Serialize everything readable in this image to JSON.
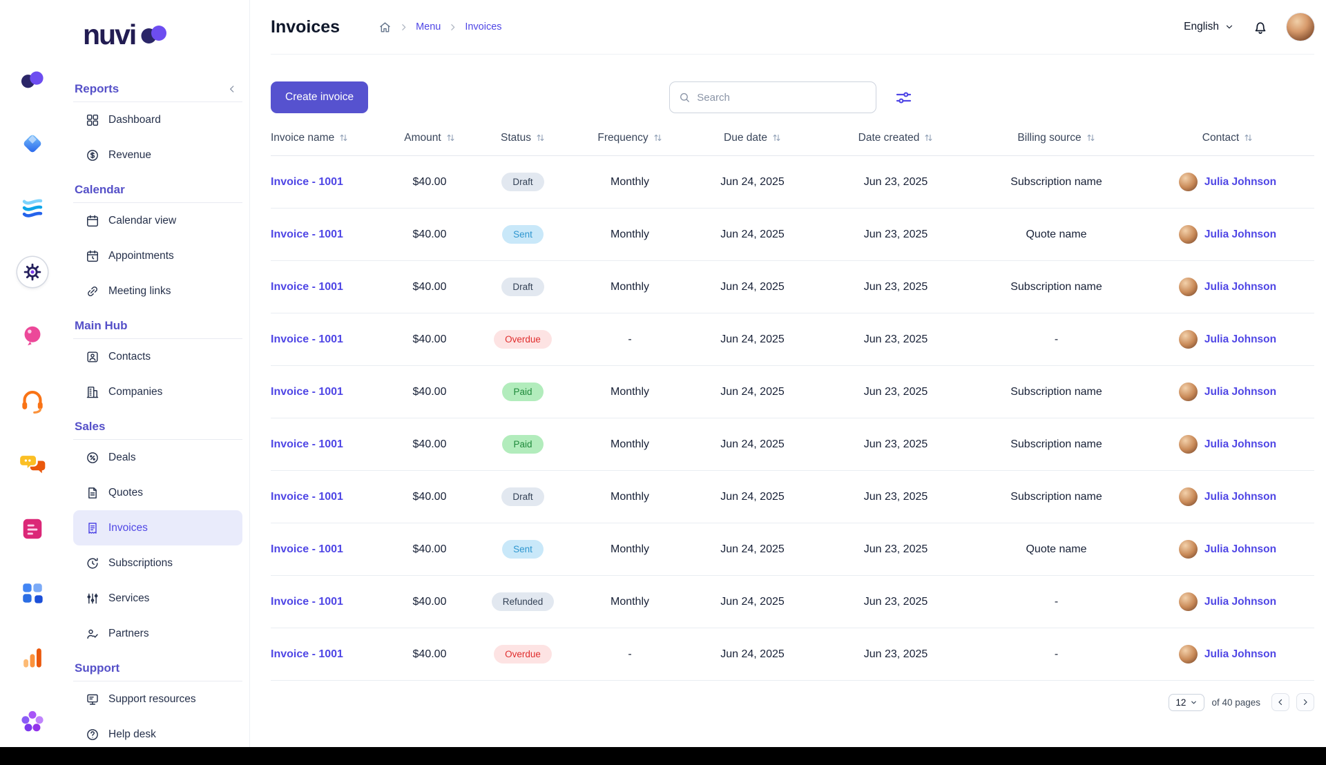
{
  "brand": {
    "logo_text": "nuvi"
  },
  "rail": {
    "items": [
      {
        "icon": "brand-mark"
      },
      {
        "icon": "gem"
      },
      {
        "icon": "waves"
      },
      {
        "icon": "settings",
        "active": true
      },
      {
        "icon": "balloon"
      },
      {
        "icon": "headset"
      },
      {
        "icon": "team-chat"
      },
      {
        "icon": "notes"
      },
      {
        "icon": "apps"
      },
      {
        "icon": "bar-chart"
      },
      {
        "icon": "community"
      }
    ]
  },
  "sidebar": {
    "sections": [
      {
        "label": "Reports",
        "collapsible": true,
        "items": [
          {
            "label": "Dashboard",
            "icon": "dashboard"
          },
          {
            "label": "Revenue",
            "icon": "revenue"
          }
        ]
      },
      {
        "label": "Calendar",
        "items": [
          {
            "label": "Calendar view",
            "icon": "calendar"
          },
          {
            "label": "Appointments",
            "icon": "appointments"
          },
          {
            "label": "Meeting links",
            "icon": "link"
          }
        ]
      },
      {
        "label": "Main Hub",
        "items": [
          {
            "label": "Contacts",
            "icon": "contacts"
          },
          {
            "label": "Companies",
            "icon": "companies"
          }
        ]
      },
      {
        "label": "Sales",
        "items": [
          {
            "label": "Deals",
            "icon": "deals"
          },
          {
            "label": "Quotes",
            "icon": "quotes"
          },
          {
            "label": "Invoices",
            "icon": "invoices",
            "active": true
          },
          {
            "label": "Subscriptions",
            "icon": "subscriptions"
          },
          {
            "label": "Services",
            "icon": "services"
          },
          {
            "label": "Partners",
            "icon": "partners"
          }
        ]
      },
      {
        "label": "Support",
        "items": [
          {
            "label": "Support resources",
            "icon": "support"
          },
          {
            "label": "Help desk",
            "icon": "help"
          }
        ]
      }
    ]
  },
  "header": {
    "title": "Invoices",
    "breadcrumb": {
      "menu": "Menu",
      "current": "Invoices"
    },
    "language": "English"
  },
  "toolbar": {
    "create_label": "Create invoice",
    "search_placeholder": "Search"
  },
  "table": {
    "columns": [
      "Invoice name",
      "Amount",
      "Status",
      "Frequency",
      "Due date",
      "Date created",
      "Billing source",
      "Contact"
    ],
    "rows": [
      {
        "name": "Invoice - 1001",
        "amount": "$40.00",
        "status": "Draft",
        "frequency": "Monthly",
        "due_date": "Jun 24, 2025",
        "date_created": "Jun 23, 2025",
        "billing_source": "Subscription name",
        "contact": "Julia Johnson"
      },
      {
        "name": "Invoice - 1001",
        "amount": "$40.00",
        "status": "Sent",
        "frequency": "Monthly",
        "due_date": "Jun 24, 2025",
        "date_created": "Jun 23, 2025",
        "billing_source": "Quote name",
        "contact": "Julia Johnson"
      },
      {
        "name": "Invoice - 1001",
        "amount": "$40.00",
        "status": "Draft",
        "frequency": "Monthly",
        "due_date": "Jun 24, 2025",
        "date_created": "Jun 23, 2025",
        "billing_source": "Subscription name",
        "contact": "Julia Johnson"
      },
      {
        "name": "Invoice - 1001",
        "amount": "$40.00",
        "status": "Overdue",
        "frequency": "-",
        "due_date": "Jun 24, 2025",
        "date_created": "Jun 23, 2025",
        "billing_source": "-",
        "contact": "Julia Johnson"
      },
      {
        "name": "Invoice - 1001",
        "amount": "$40.00",
        "status": "Paid",
        "frequency": "Monthly",
        "due_date": "Jun 24, 2025",
        "date_created": "Jun 23, 2025",
        "billing_source": "Subscription name",
        "contact": "Julia Johnson"
      },
      {
        "name": "Invoice - 1001",
        "amount": "$40.00",
        "status": "Paid",
        "frequency": "Monthly",
        "due_date": "Jun 24, 2025",
        "date_created": "Jun 23, 2025",
        "billing_source": "Subscription name",
        "contact": "Julia Johnson"
      },
      {
        "name": "Invoice - 1001",
        "amount": "$40.00",
        "status": "Draft",
        "frequency": "Monthly",
        "due_date": "Jun 24, 2025",
        "date_created": "Jun 23, 2025",
        "billing_source": "Subscription name",
        "contact": "Julia Johnson"
      },
      {
        "name": "Invoice - 1001",
        "amount": "$40.00",
        "status": "Sent",
        "frequency": "Monthly",
        "due_date": "Jun 24, 2025",
        "date_created": "Jun 23, 2025",
        "billing_source": "Quote name",
        "contact": "Julia Johnson"
      },
      {
        "name": "Invoice - 1001",
        "amount": "$40.00",
        "status": "Refunded",
        "frequency": "Monthly",
        "due_date": "Jun 24, 2025",
        "date_created": "Jun 23, 2025",
        "billing_source": "-",
        "contact": "Julia Johnson"
      },
      {
        "name": "Invoice - 1001",
        "amount": "$40.00",
        "status": "Overdue",
        "frequency": "-",
        "due_date": "Jun 24, 2025",
        "date_created": "Jun 23, 2025",
        "billing_source": "-",
        "contact": "Julia Johnson"
      }
    ]
  },
  "pagination": {
    "page_size": "12",
    "pages_label": "of 40 pages"
  },
  "colors": {
    "primary": "#5652cf",
    "link": "#4f46e5",
    "section_header": "#5550c8",
    "badge_draft_bg": "#e2e8f0",
    "badge_draft_text": "#334155",
    "badge_sent_bg": "#c9e8f9",
    "badge_sent_text": "#2e96cf",
    "badge_paid_bg": "#b2ecbc",
    "badge_paid_text": "#1f8a3b",
    "badge_overdue_bg": "#fde3e3",
    "badge_overdue_text": "#e02d2d",
    "active_item_bg": "#e9ebfb",
    "bottom_bar": "#000000"
  }
}
